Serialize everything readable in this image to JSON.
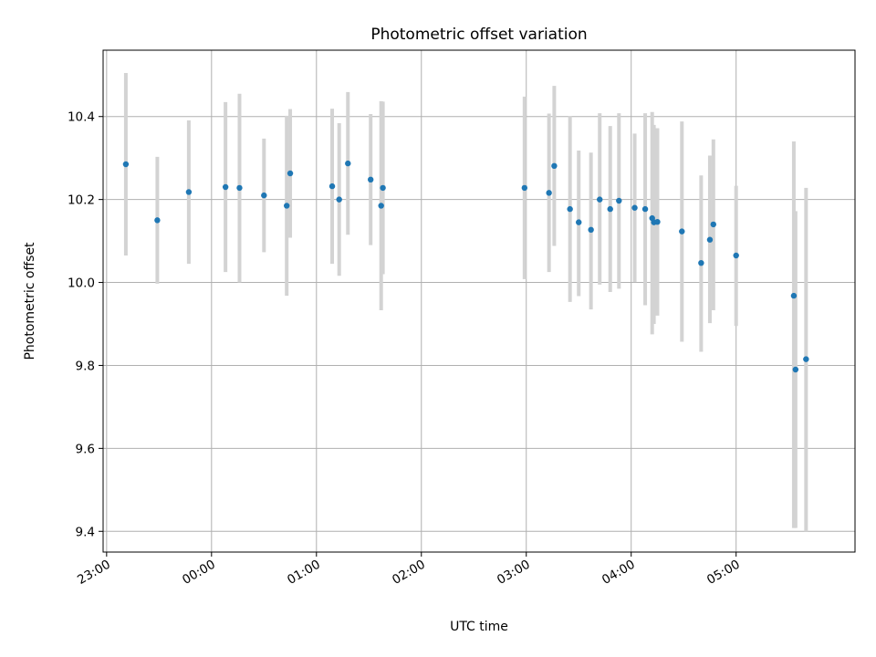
{
  "chart_data": {
    "type": "scatter",
    "title": "Photometric offset variation",
    "xlabel": "UTC time",
    "ylabel": "Photometric offset",
    "x_axis_type": "time",
    "x_start_label": "23:00",
    "xlim": [
      "22:58",
      "06:08"
    ],
    "ylim": [
      9.35,
      10.56
    ],
    "x_tick_labels": [
      "23:00",
      "00:00",
      "01:00",
      "02:00",
      "03:00",
      "04:00",
      "05:00"
    ],
    "y_ticks": [
      9.4,
      9.6,
      9.8,
      10.0,
      10.2,
      10.4
    ],
    "y_tick_labels": [
      "9.4",
      "9.6",
      "9.8",
      "10.0",
      "10.2",
      "10.4"
    ],
    "grid": true,
    "x_tick_rotation_deg": 30,
    "point_color": "#1f77b4",
    "errorbar_color": "#d3d3d3",
    "points": [
      {
        "x": "23:11",
        "y": 10.285,
        "ylow": 10.065,
        "yhigh": 10.505
      },
      {
        "x": "23:29",
        "y": 10.15,
        "ylow": 9.997,
        "yhigh": 10.303
      },
      {
        "x": "23:47",
        "y": 10.218,
        "ylow": 10.045,
        "yhigh": 10.391
      },
      {
        "x": "00:08",
        "y": 10.23,
        "ylow": 10.025,
        "yhigh": 10.435
      },
      {
        "x": "00:16",
        "y": 10.228,
        "ylow": 10.0,
        "yhigh": 10.455
      },
      {
        "x": "00:30",
        "y": 10.21,
        "ylow": 10.073,
        "yhigh": 10.347
      },
      {
        "x": "00:43",
        "y": 10.185,
        "ylow": 9.968,
        "yhigh": 10.402
      },
      {
        "x": "00:45",
        "y": 10.263,
        "ylow": 10.108,
        "yhigh": 10.418
      },
      {
        "x": "01:09",
        "y": 10.232,
        "ylow": 10.045,
        "yhigh": 10.419
      },
      {
        "x": "01:13",
        "y": 10.2,
        "ylow": 10.016,
        "yhigh": 10.384
      },
      {
        "x": "01:18",
        "y": 10.287,
        "ylow": 10.115,
        "yhigh": 10.459
      },
      {
        "x": "01:31",
        "y": 10.248,
        "ylow": 10.09,
        "yhigh": 10.406
      },
      {
        "x": "01:37",
        "y": 10.185,
        "ylow": 9.933,
        "yhigh": 10.437
      },
      {
        "x": "01:38",
        "y": 10.228,
        "ylow": 10.02,
        "yhigh": 10.436
      },
      {
        "x": "02:59",
        "y": 10.228,
        "ylow": 10.008,
        "yhigh": 10.448
      },
      {
        "x": "03:13",
        "y": 10.216,
        "ylow": 10.025,
        "yhigh": 10.407
      },
      {
        "x": "03:16",
        "y": 10.281,
        "ylow": 10.088,
        "yhigh": 10.474
      },
      {
        "x": "03:25",
        "y": 10.177,
        "ylow": 9.953,
        "yhigh": 10.401
      },
      {
        "x": "03:30",
        "y": 10.145,
        "ylow": 9.967,
        "yhigh": 10.318
      },
      {
        "x": "03:37",
        "y": 10.127,
        "ylow": 9.935,
        "yhigh": 10.313
      },
      {
        "x": "03:42",
        "y": 10.2,
        "ylow": 9.995,
        "yhigh": 10.408
      },
      {
        "x": "03:48",
        "y": 10.177,
        "ylow": 9.977,
        "yhigh": 10.377
      },
      {
        "x": "03:53",
        "y": 10.197,
        "ylow": 9.985,
        "yhigh": 10.408
      },
      {
        "x": "04:02",
        "y": 10.18,
        "ylow": 10.001,
        "yhigh": 10.359
      },
      {
        "x": "04:08",
        "y": 10.177,
        "ylow": 9.945,
        "yhigh": 10.408
      },
      {
        "x": "04:12",
        "y": 10.155,
        "ylow": 9.875,
        "yhigh": 10.411
      },
      {
        "x": "04:13",
        "y": 10.145,
        "ylow": 9.9,
        "yhigh": 10.38
      },
      {
        "x": "04:15",
        "y": 10.146,
        "ylow": 9.92,
        "yhigh": 10.372
      },
      {
        "x": "04:29",
        "y": 10.123,
        "ylow": 9.857,
        "yhigh": 10.388
      },
      {
        "x": "04:40",
        "y": 10.047,
        "ylow": 9.833,
        "yhigh": 10.258
      },
      {
        "x": "04:45",
        "y": 10.103,
        "ylow": 9.902,
        "yhigh": 10.306
      },
      {
        "x": "04:47",
        "y": 10.14,
        "ylow": 9.933,
        "yhigh": 10.345
      },
      {
        "x": "05:00",
        "y": 10.065,
        "ylow": 9.895,
        "yhigh": 10.233
      },
      {
        "x": "05:33",
        "y": 9.968,
        "ylow": 9.408,
        "yhigh": 10.34
      },
      {
        "x": "05:34",
        "y": 9.79,
        "ylow": 9.408,
        "yhigh": 10.172
      },
      {
        "x": "05:40",
        "y": 9.815,
        "ylow": 9.4,
        "yhigh": 10.228
      }
    ]
  }
}
